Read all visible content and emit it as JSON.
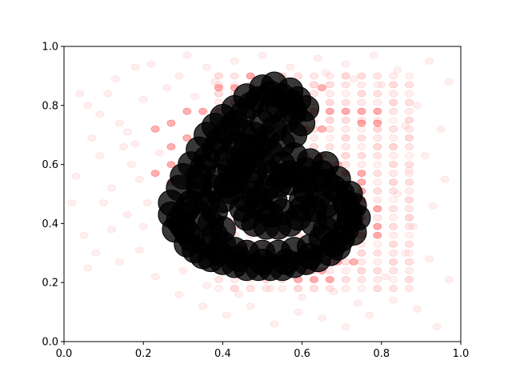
{
  "chart_data": {
    "type": "scatter",
    "title": "",
    "xlabel": "",
    "ylabel": "",
    "xlim": [
      0,
      1
    ],
    "ylim": [
      0,
      1
    ],
    "xticks": [
      "0.0",
      "0.2",
      "0.4",
      "0.6",
      "0.8",
      "1.0"
    ],
    "yticks": [
      "0.0",
      "0.2",
      "0.4",
      "0.6",
      "0.8",
      "1.0"
    ],
    "grid": false,
    "legend": "none",
    "series": [
      {
        "color": "#ff0000",
        "style": "background-grid-faint-markers",
        "grid_x": [
          0.39,
          0.43,
          0.47,
          0.51,
          0.55,
          0.59,
          0.63,
          0.67,
          0.71,
          0.75,
          0.79,
          0.83,
          0.87
        ],
        "grid_y": [
          0.18,
          0.21,
          0.24,
          0.27,
          0.3,
          0.33,
          0.36,
          0.39,
          0.42,
          0.45,
          0.48,
          0.51,
          0.54,
          0.57,
          0.6,
          0.63,
          0.66,
          0.69,
          0.72,
          0.75,
          0.78,
          0.81,
          0.84,
          0.87,
          0.9
        ],
        "strong_points": [
          [
            0.39,
            0.86
          ],
          [
            0.43,
            0.86
          ],
          [
            0.47,
            0.9
          ],
          [
            0.43,
            0.81
          ],
          [
            0.39,
            0.78
          ],
          [
            0.35,
            0.78
          ],
          [
            0.31,
            0.78
          ],
          [
            0.27,
            0.74
          ],
          [
            0.23,
            0.72
          ],
          [
            0.43,
            0.67
          ],
          [
            0.39,
            0.64
          ],
          [
            0.65,
            0.86
          ],
          [
            0.59,
            0.78
          ],
          [
            0.63,
            0.78
          ],
          [
            0.67,
            0.78
          ],
          [
            0.71,
            0.78
          ],
          [
            0.75,
            0.78
          ],
          [
            0.79,
            0.78
          ],
          [
            0.75,
            0.74
          ],
          [
            0.79,
            0.74
          ],
          [
            0.75,
            0.57
          ],
          [
            0.75,
            0.54
          ],
          [
            0.75,
            0.51
          ],
          [
            0.75,
            0.48
          ],
          [
            0.71,
            0.45
          ],
          [
            0.75,
            0.45
          ],
          [
            0.79,
            0.45
          ],
          [
            0.71,
            0.42
          ],
          [
            0.75,
            0.42
          ],
          [
            0.79,
            0.39
          ],
          [
            0.75,
            0.36
          ],
          [
            0.79,
            0.36
          ],
          [
            0.51,
            0.27
          ],
          [
            0.55,
            0.24
          ],
          [
            0.59,
            0.21
          ],
          [
            0.63,
            0.21
          ],
          [
            0.67,
            0.21
          ],
          [
            0.61,
            0.24
          ],
          [
            0.65,
            0.24
          ],
          [
            0.69,
            0.27
          ],
          [
            0.73,
            0.27
          ],
          [
            0.65,
            0.3
          ],
          [
            0.69,
            0.33
          ],
          [
            0.73,
            0.39
          ],
          [
            0.69,
            0.39
          ],
          [
            0.27,
            0.6
          ],
          [
            0.27,
            0.54
          ],
          [
            0.23,
            0.57
          ],
          [
            0.45,
            0.69
          ],
          [
            0.41,
            0.72
          ],
          [
            0.37,
            0.72
          ],
          [
            0.61,
            0.72
          ],
          [
            0.65,
            0.72
          ],
          [
            0.57,
            0.66
          ],
          [
            0.61,
            0.63
          ],
          [
            0.65,
            0.63
          ],
          [
            0.69,
            0.6
          ],
          [
            0.71,
            0.57
          ],
          [
            0.31,
            0.69
          ],
          [
            0.27,
            0.66
          ]
        ]
      },
      {
        "color": "#ffb0b0",
        "style": "scattered-faint-markers",
        "points": [
          [
            0.04,
            0.84
          ],
          [
            0.07,
            0.69
          ],
          [
            0.02,
            0.47
          ],
          [
            0.05,
            0.36
          ],
          [
            0.11,
            0.84
          ],
          [
            0.14,
            0.74
          ],
          [
            0.09,
            0.63
          ],
          [
            0.12,
            0.52
          ],
          [
            0.17,
            0.6
          ],
          [
            0.16,
            0.43
          ],
          [
            0.19,
            0.31
          ],
          [
            0.22,
            0.94
          ],
          [
            0.26,
            0.86
          ],
          [
            0.18,
            0.93
          ],
          [
            0.13,
            0.89
          ],
          [
            0.09,
            0.77
          ],
          [
            0.15,
            0.66
          ],
          [
            0.19,
            0.55
          ],
          [
            0.12,
            0.38
          ],
          [
            0.06,
            0.25
          ],
          [
            0.03,
            0.56
          ],
          [
            0.24,
            0.64
          ],
          [
            0.21,
            0.47
          ],
          [
            0.23,
            0.22
          ],
          [
            0.29,
            0.16
          ],
          [
            0.35,
            0.12
          ],
          [
            0.41,
            0.09
          ],
          [
            0.47,
            0.12
          ],
          [
            0.53,
            0.06
          ],
          [
            0.59,
            0.1
          ],
          [
            0.65,
            0.08
          ],
          [
            0.71,
            0.05
          ],
          [
            0.77,
            0.09
          ],
          [
            0.83,
            0.14
          ],
          [
            0.89,
            0.11
          ],
          [
            0.94,
            0.05
          ],
          [
            0.97,
            0.21
          ],
          [
            0.92,
            0.28
          ],
          [
            0.88,
            0.39
          ],
          [
            0.93,
            0.46
          ],
          [
            0.96,
            0.55
          ],
          [
            0.91,
            0.63
          ],
          [
            0.95,
            0.72
          ],
          [
            0.89,
            0.8
          ],
          [
            0.97,
            0.88
          ],
          [
            0.92,
            0.95
          ],
          [
            0.84,
            0.92
          ],
          [
            0.78,
            0.97
          ],
          [
            0.71,
            0.94
          ],
          [
            0.64,
            0.96
          ],
          [
            0.57,
            0.93
          ],
          [
            0.5,
            0.97
          ],
          [
            0.43,
            0.95
          ],
          [
            0.36,
            0.93
          ],
          [
            0.31,
            0.97
          ],
          [
            0.27,
            0.35
          ],
          [
            0.3,
            0.24
          ],
          [
            0.36,
            0.19
          ],
          [
            0.44,
            0.16
          ],
          [
            0.52,
            0.18
          ],
          [
            0.6,
            0.15
          ],
          [
            0.68,
            0.17
          ],
          [
            0.74,
            0.13
          ],
          [
            0.81,
            0.22
          ],
          [
            0.86,
            0.3
          ],
          [
            0.84,
            0.5
          ],
          [
            0.87,
            0.58
          ],
          [
            0.83,
            0.66
          ],
          [
            0.86,
            0.73
          ],
          [
            0.8,
            0.87
          ],
          [
            0.73,
            0.89
          ],
          [
            0.66,
            0.91
          ],
          [
            0.38,
            0.88
          ],
          [
            0.33,
            0.83
          ],
          [
            0.29,
            0.9
          ],
          [
            0.2,
            0.82
          ],
          [
            0.16,
            0.71
          ],
          [
            0.1,
            0.47
          ],
          [
            0.08,
            0.3
          ],
          [
            0.14,
            0.27
          ],
          [
            0.2,
            0.39
          ],
          [
            0.25,
            0.46
          ],
          [
            0.18,
            0.67
          ],
          [
            0.06,
            0.8
          ]
        ]
      },
      {
        "color": "#000000",
        "style": "large-dark-markers",
        "points": [
          [
            0.32,
            0.47
          ],
          [
            0.31,
            0.45
          ],
          [
            0.3,
            0.43
          ],
          [
            0.29,
            0.41
          ],
          [
            0.3,
            0.39
          ],
          [
            0.31,
            0.37
          ],
          [
            0.32,
            0.35
          ],
          [
            0.31,
            0.33
          ],
          [
            0.33,
            0.31
          ],
          [
            0.35,
            0.29
          ],
          [
            0.37,
            0.28
          ],
          [
            0.4,
            0.27
          ],
          [
            0.43,
            0.26
          ],
          [
            0.46,
            0.25
          ],
          [
            0.49,
            0.25
          ],
          [
            0.52,
            0.25
          ],
          [
            0.55,
            0.25
          ],
          [
            0.58,
            0.26
          ],
          [
            0.61,
            0.27
          ],
          [
            0.64,
            0.28
          ],
          [
            0.67,
            0.3
          ],
          [
            0.69,
            0.32
          ],
          [
            0.7,
            0.35
          ],
          [
            0.71,
            0.38
          ],
          [
            0.72,
            0.41
          ],
          [
            0.72,
            0.44
          ],
          [
            0.71,
            0.47
          ],
          [
            0.7,
            0.5
          ],
          [
            0.68,
            0.52
          ],
          [
            0.66,
            0.54
          ],
          [
            0.63,
            0.55
          ],
          [
            0.6,
            0.55
          ],
          [
            0.57,
            0.54
          ],
          [
            0.54,
            0.53
          ],
          [
            0.51,
            0.52
          ],
          [
            0.48,
            0.5
          ],
          [
            0.46,
            0.48
          ],
          [
            0.45,
            0.45
          ],
          [
            0.46,
            0.42
          ],
          [
            0.48,
            0.4
          ],
          [
            0.51,
            0.39
          ],
          [
            0.54,
            0.39
          ],
          [
            0.57,
            0.4
          ],
          [
            0.59,
            0.42
          ],
          [
            0.6,
            0.45
          ],
          [
            0.6,
            0.48
          ],
          [
            0.34,
            0.5
          ],
          [
            0.34,
            0.53
          ],
          [
            0.34,
            0.56
          ],
          [
            0.35,
            0.59
          ],
          [
            0.36,
            0.62
          ],
          [
            0.38,
            0.65
          ],
          [
            0.39,
            0.68
          ],
          [
            0.41,
            0.71
          ],
          [
            0.43,
            0.74
          ],
          [
            0.45,
            0.77
          ],
          [
            0.47,
            0.8
          ],
          [
            0.49,
            0.82
          ],
          [
            0.52,
            0.84
          ],
          [
            0.55,
            0.83
          ],
          [
            0.57,
            0.81
          ],
          [
            0.58,
            0.78
          ],
          [
            0.56,
            0.75
          ],
          [
            0.53,
            0.72
          ],
          [
            0.51,
            0.69
          ],
          [
            0.49,
            0.66
          ],
          [
            0.47,
            0.63
          ],
          [
            0.45,
            0.6
          ],
          [
            0.44,
            0.57
          ],
          [
            0.43,
            0.54
          ],
          [
            0.42,
            0.51
          ],
          [
            0.38,
            0.44
          ],
          [
            0.37,
            0.4
          ],
          [
            0.38,
            0.36
          ],
          [
            0.4,
            0.33
          ],
          [
            0.43,
            0.31
          ],
          [
            0.46,
            0.3
          ],
          [
            0.5,
            0.3
          ],
          [
            0.54,
            0.3
          ],
          [
            0.58,
            0.31
          ],
          [
            0.62,
            0.32
          ],
          [
            0.65,
            0.35
          ],
          [
            0.66,
            0.38
          ],
          [
            0.67,
            0.42
          ],
          [
            0.66,
            0.46
          ],
          [
            0.64,
            0.49
          ],
          [
            0.4,
            0.48
          ],
          [
            0.41,
            0.53
          ],
          [
            0.42,
            0.58
          ],
          [
            0.44,
            0.62
          ],
          [
            0.46,
            0.66
          ],
          [
            0.48,
            0.7
          ],
          [
            0.5,
            0.74
          ],
          [
            0.52,
            0.78
          ],
          [
            0.54,
            0.8
          ],
          [
            0.28,
            0.38
          ],
          [
            0.27,
            0.43
          ],
          [
            0.27,
            0.47
          ],
          [
            0.29,
            0.52
          ],
          [
            0.3,
            0.56
          ],
          [
            0.32,
            0.6
          ],
          [
            0.34,
            0.65
          ],
          [
            0.36,
            0.7
          ],
          [
            0.38,
            0.73
          ],
          [
            0.4,
            0.76
          ],
          [
            0.43,
            0.79
          ],
          [
            0.46,
            0.83
          ],
          [
            0.5,
            0.86
          ],
          [
            0.53,
            0.87
          ],
          [
            0.57,
            0.85
          ],
          [
            0.59,
            0.82
          ],
          [
            0.61,
            0.79
          ],
          [
            0.6,
            0.74
          ],
          [
            0.58,
            0.7
          ],
          [
            0.55,
            0.67
          ],
          [
            0.52,
            0.64
          ],
          [
            0.5,
            0.61
          ],
          [
            0.48,
            0.58
          ],
          [
            0.47,
            0.54
          ],
          [
            0.36,
            0.33
          ],
          [
            0.39,
            0.3
          ],
          [
            0.44,
            0.28
          ],
          [
            0.5,
            0.27
          ],
          [
            0.56,
            0.27
          ],
          [
            0.62,
            0.29
          ],
          [
            0.68,
            0.33
          ],
          [
            0.73,
            0.37
          ],
          [
            0.74,
            0.42
          ],
          [
            0.73,
            0.46
          ],
          [
            0.72,
            0.5
          ],
          [
            0.69,
            0.55
          ],
          [
            0.65,
            0.57
          ],
          [
            0.61,
            0.58
          ],
          [
            0.57,
            0.57
          ],
          [
            0.55,
            0.56
          ],
          [
            0.53,
            0.48
          ],
          [
            0.55,
            0.44
          ],
          [
            0.52,
            0.43
          ],
          [
            0.5,
            0.45
          ],
          [
            0.49,
            0.48
          ],
          [
            0.4,
            0.38
          ],
          [
            0.35,
            0.42
          ],
          [
            0.36,
            0.47
          ],
          [
            0.38,
            0.52
          ],
          [
            0.39,
            0.56
          ],
          [
            0.41,
            0.62
          ],
          [
            0.43,
            0.67
          ],
          [
            0.45,
            0.71
          ],
          [
            0.58,
            0.63
          ],
          [
            0.62,
            0.61
          ],
          [
            0.66,
            0.6
          ],
          [
            0.55,
            0.6
          ],
          [
            0.52,
            0.57
          ],
          [
            0.61,
            0.51
          ],
          [
            0.63,
            0.45
          ],
          [
            0.63,
            0.4
          ]
        ]
      }
    ]
  }
}
